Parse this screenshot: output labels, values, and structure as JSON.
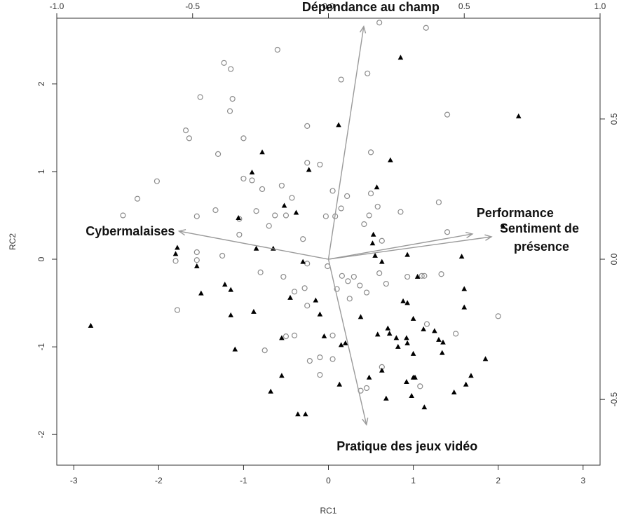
{
  "chart_data": {
    "type": "scatter",
    "title": "",
    "xlabel": "RC1",
    "ylabel": "RC2",
    "xlim": [
      -3.2,
      3.2
    ],
    "ylim": [
      -2.35,
      2.75
    ],
    "x_ticks": [
      -3,
      -2,
      -1,
      0,
      1,
      2,
      3
    ],
    "y_ticks": [
      -2,
      -1,
      0,
      1,
      2
    ],
    "top_ticks": [
      -1.0,
      -0.5,
      0.0,
      0.5,
      1.0
    ],
    "top_tick_labels": [
      "-1.0",
      "-0.5",
      "0.0",
      "0.5",
      "1.0"
    ],
    "right_ticks": [
      -0.5,
      0.0,
      0.5
    ],
    "right_tick_labels": [
      "-0.5",
      "0.0",
      "0.5"
    ],
    "loading_scale": 3.2,
    "grid": false,
    "colors": {
      "circle": "#8c8c8c",
      "triangle": "#000000",
      "arrow": "#9a9a9a",
      "axis": "#333333"
    },
    "series": [
      {
        "marker": "circle",
        "points": [
          [
            0.6,
            2.7
          ],
          [
            1.15,
            2.64
          ],
          [
            -0.6,
            2.39
          ],
          [
            -1.23,
            2.24
          ],
          [
            -1.15,
            2.17
          ],
          [
            0.15,
            2.05
          ],
          [
            0.46,
            2.12
          ],
          [
            -1.51,
            1.85
          ],
          [
            -1.13,
            1.83
          ],
          [
            -1.16,
            1.69
          ],
          [
            1.4,
            1.65
          ],
          [
            -1.68,
            1.47
          ],
          [
            -1.64,
            1.38
          ],
          [
            -0.25,
            1.52
          ],
          [
            -1.0,
            1.38
          ],
          [
            -1.3,
            1.2
          ],
          [
            0.5,
            1.22
          ],
          [
            -1.0,
            0.92
          ],
          [
            -0.25,
            1.1
          ],
          [
            -0.1,
            1.08
          ],
          [
            -2.02,
            0.89
          ],
          [
            -0.55,
            0.84
          ],
          [
            0.05,
            0.78
          ],
          [
            -0.9,
            0.9
          ],
          [
            0.5,
            0.75
          ],
          [
            -2.25,
            0.69
          ],
          [
            -0.78,
            0.8
          ],
          [
            0.22,
            0.72
          ],
          [
            -0.43,
            0.7
          ],
          [
            0.58,
            0.6
          ],
          [
            -1.33,
            0.56
          ],
          [
            1.3,
            0.65
          ],
          [
            -2.42,
            0.5
          ],
          [
            -1.55,
            0.49
          ],
          [
            -0.63,
            0.5
          ],
          [
            0.08,
            0.49
          ],
          [
            0.15,
            0.58
          ],
          [
            -0.03,
            0.49
          ],
          [
            0.48,
            0.5
          ],
          [
            0.85,
            0.54
          ],
          [
            -1.05,
            0.46
          ],
          [
            -0.85,
            0.55
          ],
          [
            -0.5,
            0.5
          ],
          [
            -0.7,
            0.38
          ],
          [
            0.42,
            0.4
          ],
          [
            1.4,
            0.31
          ],
          [
            -0.3,
            0.23
          ],
          [
            0.63,
            0.21
          ],
          [
            -1.05,
            0.28
          ],
          [
            -1.55,
            0.08
          ],
          [
            -1.8,
            -0.02
          ],
          [
            -1.55,
            -0.01
          ],
          [
            -1.25,
            0.04
          ],
          [
            -0.25,
            -0.05
          ],
          [
            -0.01,
            -0.08
          ],
          [
            -0.8,
            -0.15
          ],
          [
            -0.53,
            -0.2
          ],
          [
            0.16,
            -0.19
          ],
          [
            0.3,
            -0.2
          ],
          [
            0.6,
            -0.16
          ],
          [
            -0.28,
            -0.33
          ],
          [
            0.23,
            -0.25
          ],
          [
            0.37,
            -0.3
          ],
          [
            -0.4,
            -0.37
          ],
          [
            0.68,
            -0.28
          ],
          [
            1.13,
            -0.19
          ],
          [
            0.93,
            -0.2
          ],
          [
            1.33,
            -0.17
          ],
          [
            -0.25,
            -0.53
          ],
          [
            0.25,
            -0.45
          ],
          [
            0.1,
            -0.34
          ],
          [
            0.45,
            -0.38
          ],
          [
            1.1,
            -0.19
          ],
          [
            -1.78,
            -0.58
          ],
          [
            -0.5,
            -0.88
          ],
          [
            -0.4,
            -0.87
          ],
          [
            0.05,
            -0.87
          ],
          [
            1.16,
            -0.74
          ],
          [
            1.5,
            -0.85
          ],
          [
            2.0,
            -0.65
          ],
          [
            -0.75,
            -1.04
          ],
          [
            -0.1,
            -1.12
          ],
          [
            -0.22,
            -1.16
          ],
          [
            0.05,
            -1.14
          ],
          [
            -0.1,
            -1.32
          ],
          [
            0.63,
            -1.23
          ],
          [
            1.08,
            -1.45
          ],
          [
            0.38,
            -1.5
          ],
          [
            0.45,
            -1.47
          ]
        ]
      },
      {
        "marker": "triangle",
        "points": [
          [
            0.85,
            2.3
          ],
          [
            2.24,
            1.63
          ],
          [
            0.12,
            1.53
          ],
          [
            -0.78,
            1.22
          ],
          [
            0.73,
            1.13
          ],
          [
            -0.9,
            0.99
          ],
          [
            -0.23,
            1.02
          ],
          [
            0.57,
            0.82
          ],
          [
            -0.52,
            0.61
          ],
          [
            -1.06,
            0.47
          ],
          [
            -0.38,
            0.53
          ],
          [
            0.53,
            0.28
          ],
          [
            2.06,
            0.37
          ],
          [
            -1.78,
            0.13
          ],
          [
            -0.85,
            0.12
          ],
          [
            -0.65,
            0.12
          ],
          [
            0.52,
            0.18
          ],
          [
            -1.8,
            0.06
          ],
          [
            0.55,
            0.04
          ],
          [
            0.93,
            0.05
          ],
          [
            1.57,
            0.03
          ],
          [
            -1.55,
            -0.08
          ],
          [
            0.63,
            -0.03
          ],
          [
            -0.3,
            -0.03
          ],
          [
            -1.22,
            -0.29
          ],
          [
            1.05,
            -0.2
          ],
          [
            -1.15,
            -0.35
          ],
          [
            -1.5,
            -0.39
          ],
          [
            1.6,
            -0.34
          ],
          [
            -0.15,
            -0.47
          ],
          [
            -0.45,
            -0.44
          ],
          [
            0.88,
            -0.48
          ],
          [
            0.93,
            -0.5
          ],
          [
            1.6,
            -0.55
          ],
          [
            -0.88,
            -0.6
          ],
          [
            -0.1,
            -0.63
          ],
          [
            0.38,
            -0.66
          ],
          [
            0.7,
            -0.79
          ],
          [
            1.12,
            -0.8
          ],
          [
            -1.15,
            -0.64
          ],
          [
            1.0,
            -0.68
          ],
          [
            0.72,
            -0.85
          ],
          [
            0.58,
            -0.86
          ],
          [
            1.25,
            -0.82
          ],
          [
            0.92,
            -0.9
          ],
          [
            0.2,
            -0.96
          ],
          [
            0.8,
            -0.9
          ],
          [
            1.35,
            -0.95
          ],
          [
            -0.05,
            -0.88
          ],
          [
            0.15,
            -0.98
          ],
          [
            0.82,
            -1.0
          ],
          [
            0.93,
            -0.96
          ],
          [
            1.3,
            -0.92
          ],
          [
            -0.55,
            -0.9
          ],
          [
            -1.1,
            -1.03
          ],
          [
            -2.8,
            -0.76
          ],
          [
            1.0,
            -1.08
          ],
          [
            1.34,
            -1.07
          ],
          [
            1.85,
            -1.14
          ],
          [
            0.48,
            -1.35
          ],
          [
            1.0,
            -1.35
          ],
          [
            0.63,
            -1.27
          ],
          [
            1.62,
            -1.43
          ],
          [
            1.68,
            -1.33
          ],
          [
            0.13,
            -1.43
          ],
          [
            0.92,
            -1.4
          ],
          [
            1.02,
            -1.35
          ],
          [
            -0.55,
            -1.33
          ],
          [
            -0.68,
            -1.51
          ],
          [
            1.48,
            -1.52
          ],
          [
            0.68,
            -1.59
          ],
          [
            0.98,
            -1.56
          ],
          [
            1.13,
            -1.69
          ],
          [
            -0.36,
            -1.77
          ],
          [
            -0.27,
            -1.77
          ]
        ]
      }
    ],
    "loadings": [
      {
        "label": "Dépendance au champ",
        "x": 0.13,
        "y": 0.83
      },
      {
        "label": "Cybermalaises",
        "x": -0.55,
        "y": 0.1
      },
      {
        "label": "Performance",
        "x": 0.53,
        "y": 0.09
      },
      {
        "label": "Sentiment de\npresence",
        "x": 0.6,
        "y": 0.08
      },
      {
        "label": "Pratique des jeux vidéo",
        "x": 0.14,
        "y": -0.59
      }
    ]
  }
}
